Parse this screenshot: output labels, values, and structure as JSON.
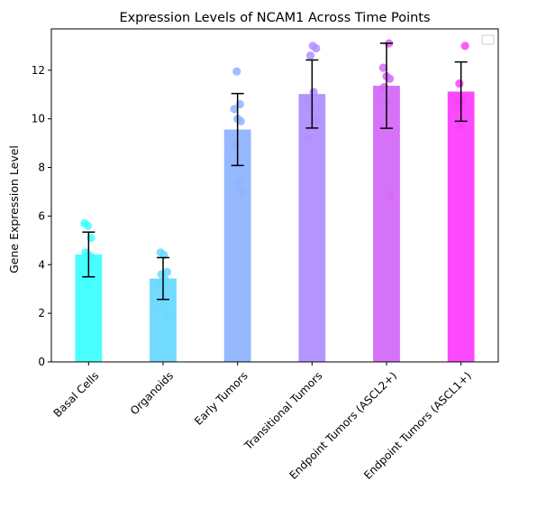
{
  "chart_data": {
    "type": "bar",
    "title": "Expression Levels of NCAM1 Across Time Points",
    "xlabel": "",
    "ylabel": "Gene Expression Level",
    "ylim": [
      0,
      13.7
    ],
    "yticks": [
      0,
      2,
      4,
      6,
      8,
      10,
      12
    ],
    "grid": false,
    "legend": "top-right",
    "categories": [
      "Basal Cells",
      "Organoids",
      "Early Tumors",
      "Transitional Tumors",
      "Endpoint Tumors (ASCL2+)",
      "Endpoint Tumors (ASCL1+)"
    ],
    "values": [
      4.42,
      3.43,
      9.56,
      11.02,
      11.36,
      11.12
    ],
    "errors": [
      0.92,
      0.86,
      1.48,
      1.4,
      1.75,
      1.22
    ],
    "colors": [
      "#40ffff",
      "#6ad8ff",
      "#8fb4ff",
      "#b18fff",
      "#d46af8",
      "#fd3ffd"
    ],
    "points": [
      [
        5.7,
        5.6,
        5.1,
        4.5,
        4.4,
        4.3,
        3.5,
        3.2
      ],
      [
        4.5,
        4.4,
        3.7,
        3.6,
        3.4,
        3.2,
        2.3,
        1.95
      ],
      [
        11.95,
        10.6,
        10.4,
        10.0,
        9.9,
        8.9,
        7.4,
        7.0
      ],
      [
        13.0,
        12.9,
        12.6,
        11.1,
        10.8,
        10.5,
        9.9,
        9.2
      ],
      [
        13.1,
        12.1,
        11.75,
        11.65,
        11.3,
        10.7,
        6.85
      ],
      [
        13.0,
        11.45,
        10.75,
        10.7,
        9.7
      ]
    ]
  }
}
